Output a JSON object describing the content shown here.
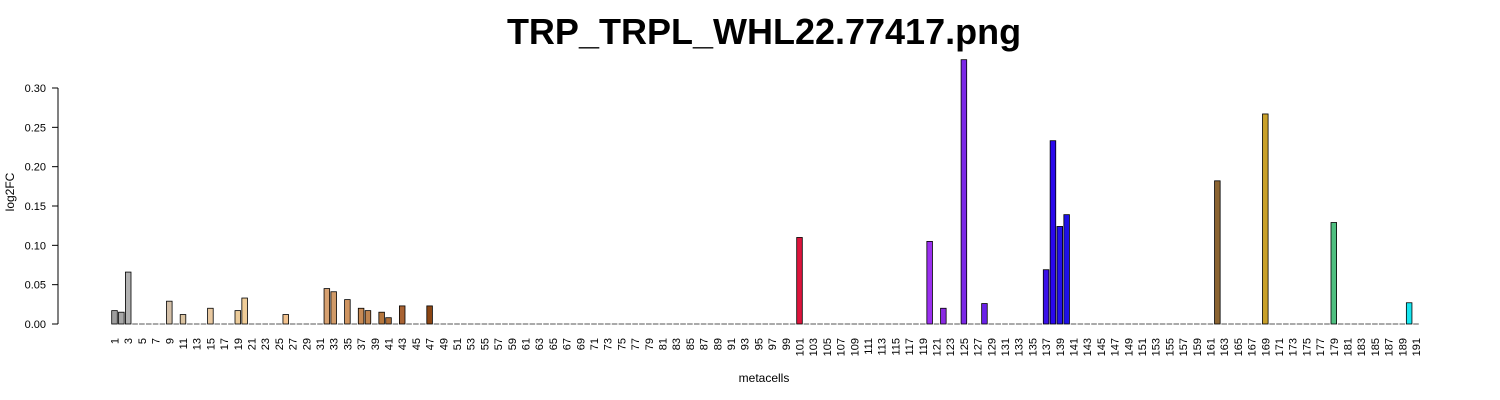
{
  "chart_data": {
    "type": "bar",
    "title": "TRP_TRPL_WHL22.77417.png",
    "xlabel": "metacells",
    "ylabel": "log2FC",
    "ylim": [
      0,
      0.34
    ],
    "y_ticks": [
      "0.00",
      "0.05",
      "0.10",
      "0.15",
      "0.20",
      "0.25",
      "0.30"
    ],
    "y_tick_values": [
      0,
      0.05,
      0.1,
      0.15,
      0.2,
      0.25,
      0.3
    ],
    "x_start": 1,
    "x_end": 191,
    "x_tick_step": 2,
    "default_color": "#cccccc",
    "bars": [
      {
        "x": 1,
        "value": 0.017,
        "color": "#9e9e9e"
      },
      {
        "x": 2,
        "value": 0.015,
        "color": "#a7a7a7"
      },
      {
        "x": 3,
        "value": 0.066,
        "color": "#b2b2b2"
      },
      {
        "x": 9,
        "value": 0.029,
        "color": "#d4c0a8"
      },
      {
        "x": 11,
        "value": 0.012,
        "color": "#dbc4a2"
      },
      {
        "x": 15,
        "value": 0.02,
        "color": "#e8c8a0"
      },
      {
        "x": 19,
        "value": 0.017,
        "color": "#ebcb9a"
      },
      {
        "x": 20,
        "value": 0.033,
        "color": "#f0cd98"
      },
      {
        "x": 26,
        "value": 0.012,
        "color": "#f2c28e"
      },
      {
        "x": 32,
        "value": 0.045,
        "color": "#d6a070"
      },
      {
        "x": 33,
        "value": 0.041,
        "color": "#d09a68"
      },
      {
        "x": 35,
        "value": 0.031,
        "color": "#cf9460"
      },
      {
        "x": 37,
        "value": 0.02,
        "color": "#c78a55"
      },
      {
        "x": 38,
        "value": 0.017,
        "color": "#c0844f"
      },
      {
        "x": 40,
        "value": 0.015,
        "color": "#b5773e"
      },
      {
        "x": 41,
        "value": 0.008,
        "color": "#ad6d38"
      },
      {
        "x": 43,
        "value": 0.023,
        "color": "#a86232"
      },
      {
        "x": 47,
        "value": 0.023,
        "color": "#8b4513"
      },
      {
        "x": 101,
        "value": 0.11,
        "color": "#dc143c"
      },
      {
        "x": 120,
        "value": 0.105,
        "color": "#9b30f0"
      },
      {
        "x": 122,
        "value": 0.02,
        "color": "#8a2be2"
      },
      {
        "x": 125,
        "value": 0.336,
        "color": "#7b28e6"
      },
      {
        "x": 128,
        "value": 0.026,
        "color": "#6a22e8"
      },
      {
        "x": 137,
        "value": 0.069,
        "color": "#3a10e8"
      },
      {
        "x": 138,
        "value": 0.233,
        "color": "#2a08ec"
      },
      {
        "x": 139,
        "value": 0.124,
        "color": "#2410ea"
      },
      {
        "x": 140,
        "value": 0.139,
        "color": "#1e10e8"
      },
      {
        "x": 162,
        "value": 0.182,
        "color": "#8b6432"
      },
      {
        "x": 169,
        "value": 0.267,
        "color": "#c8a02a"
      },
      {
        "x": 179,
        "value": 0.129,
        "color": "#4fbf80"
      },
      {
        "x": 190,
        "value": 0.027,
        "color": "#17e6f0"
      }
    ]
  }
}
